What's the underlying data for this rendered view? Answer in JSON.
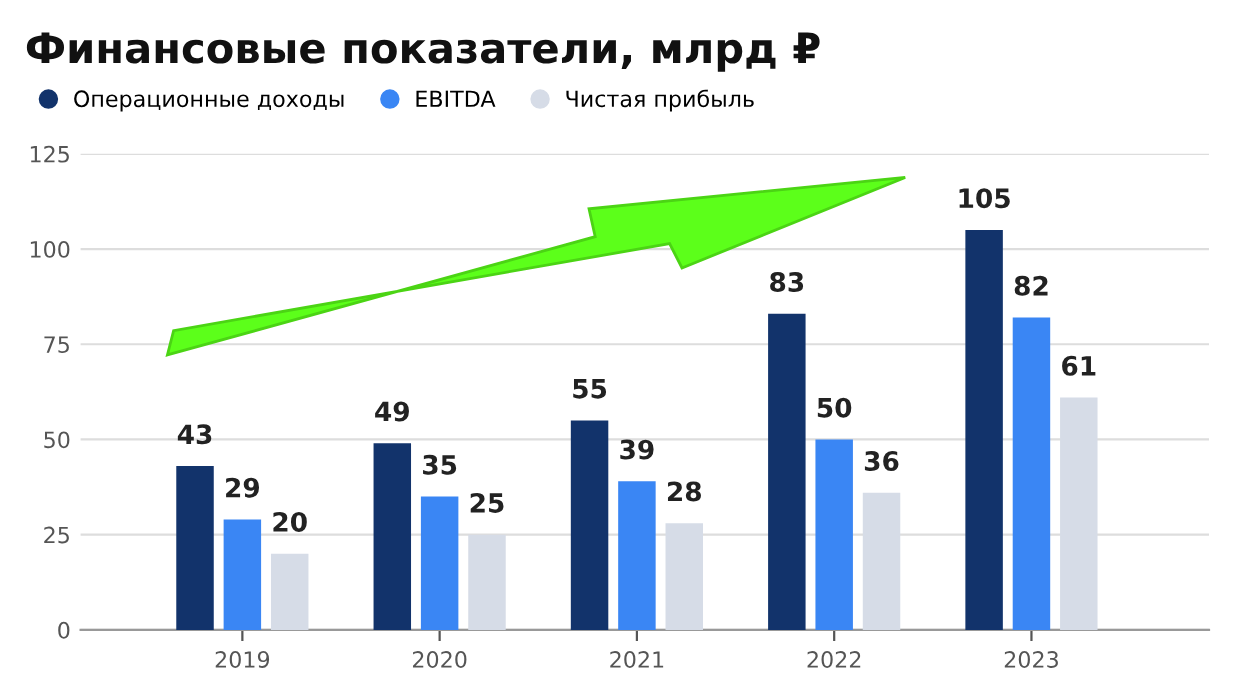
{
  "chart_data": {
    "type": "bar",
    "title": "Финансовые показатели, млрд ₽",
    "categories": [
      "2019",
      "2020",
      "2021",
      "2022",
      "2023"
    ],
    "series": [
      {
        "name": "Операционные доходы",
        "color": "#12336b",
        "values": [
          43,
          49,
          55,
          83,
          105
        ]
      },
      {
        "name": "EBITDA",
        "color": "#3a86f4",
        "values": [
          29,
          35,
          39,
          50,
          82
        ]
      },
      {
        "name": "Чистая прибыль",
        "color": "#d6dce7",
        "values": [
          20,
          25,
          28,
          36,
          61
        ]
      }
    ],
    "ylim": [
      0,
      125
    ],
    "yticks": [
      0,
      25,
      50,
      75,
      100,
      125
    ],
    "grid": "y",
    "legend": "top left",
    "data_labels": true
  }
}
